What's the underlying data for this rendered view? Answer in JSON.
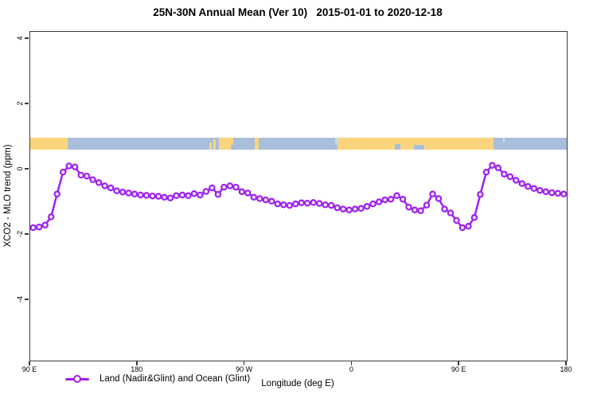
{
  "title": "25N-30N Annual Mean (Ver 10)   2015-01-01 to 2020-12-18",
  "chart_data": {
    "type": "line",
    "title": "25N-30N Annual Mean (Ver 10)   2015-01-01 to 2020-12-18",
    "xlabel": "Longitude (deg E)",
    "ylabel": "XCO2 - MLO trend (ppm)",
    "x_axis": {
      "tick_labels": [
        "90 E",
        "180",
        "90 W",
        "0",
        "90 E",
        "180"
      ],
      "tick_offsets_deg": [
        0,
        90,
        180,
        270,
        360,
        450
      ],
      "span_deg": 450,
      "note": "longitude axis starts at 90E and wraps eastward around the globe to 180"
    },
    "y_axis": {
      "tick_labels": [
        "4",
        "2",
        "0",
        "-2",
        "-4"
      ],
      "tick_values": [
        4,
        2,
        0,
        -2,
        -4
      ],
      "ylim": [
        -5.85,
        4.22
      ],
      "grid": false
    },
    "legend": {
      "position": "bottom-left",
      "entries": [
        {
          "label": "Land (Nadir&Glint) and Ocean (Glint)",
          "color": "#A020F0",
          "marker": "open-circle"
        }
      ]
    },
    "series": [
      {
        "name": "Land (Nadir&Glint) and Ocean (Glint)",
        "color": "#A020F0",
        "x_start_offset_deg": 2.5,
        "x_step_deg": 5,
        "values": [
          -1.78,
          -1.76,
          -1.7,
          -1.45,
          -0.75,
          -0.08,
          0.11,
          0.08,
          -0.17,
          -0.2,
          -0.31,
          -0.4,
          -0.5,
          -0.56,
          -0.65,
          -0.69,
          -0.72,
          -0.75,
          -0.78,
          -0.79,
          -0.81,
          -0.82,
          -0.85,
          -0.87,
          -0.8,
          -0.78,
          -0.8,
          -0.74,
          -0.78,
          -0.67,
          -0.56,
          -0.76,
          -0.54,
          -0.5,
          -0.54,
          -0.68,
          -0.72,
          -0.85,
          -0.89,
          -0.93,
          -0.97,
          -1.05,
          -1.08,
          -1.1,
          -1.05,
          -1.02,
          -1.03,
          -1.01,
          -1.04,
          -1.08,
          -1.1,
          -1.17,
          -1.21,
          -1.24,
          -1.21,
          -1.19,
          -1.13,
          -1.05,
          -0.99,
          -0.93,
          -0.91,
          -0.8,
          -0.91,
          -1.15,
          -1.24,
          -1.26,
          -1.09,
          -0.75,
          -0.89,
          -1.21,
          -1.33,
          -1.56,
          -1.78,
          -1.74,
          -1.47,
          -0.76,
          -0.08,
          0.13,
          0.05,
          -0.14,
          -0.22,
          -0.33,
          -0.43,
          -0.52,
          -0.58,
          -0.64,
          -0.68,
          -0.71,
          -0.73,
          -0.75
        ]
      }
    ],
    "surface_type_band": {
      "description": "land/ocean strip drawn across the plot between y values 0.62 and 0.98",
      "value_top": 0.98,
      "value_bottom": 0.62,
      "land_color": "#FBD57E",
      "ocean_color": "#A9BEDB",
      "ocean_light_color": "#C9D6E9",
      "segments": [
        {
          "surface": "land",
          "from_deg": 0,
          "to_deg": 31.5
        },
        {
          "surface": "ocean",
          "from_deg": 31.5,
          "to_deg": 158.5
        },
        {
          "surface": "land",
          "from_deg": 158.5,
          "to_deg": 170
        },
        {
          "surface": "ocean",
          "from_deg": 170,
          "to_deg": 188.5
        },
        {
          "surface": "land",
          "from_deg": 188.5,
          "to_deg": 191.5
        },
        {
          "surface": "ocean",
          "from_deg": 191.5,
          "to_deg": 258
        },
        {
          "surface": "land",
          "from_deg": 258,
          "to_deg": 388.5
        },
        {
          "surface": "ocean",
          "from_deg": 388.5,
          "to_deg": 450
        }
      ],
      "patches": [
        {
          "surface": "land",
          "from_deg": 150.5,
          "to_deg": 152.2,
          "align": "bottom",
          "h": 0.6
        },
        {
          "surface": "land",
          "from_deg": 153.6,
          "to_deg": 155.6,
          "align": "bottom",
          "h": 0.85
        },
        {
          "surface": "ocean",
          "from_deg": 168,
          "to_deg": 170,
          "align": "bottom",
          "h": 0.4
        },
        {
          "surface": "ocean-light",
          "from_deg": 255.5,
          "to_deg": 258.5,
          "align": "top",
          "h": 0.65
        },
        {
          "surface": "ocean",
          "from_deg": 305.5,
          "to_deg": 310.5,
          "align": "bottom",
          "h": 0.45
        },
        {
          "surface": "ocean",
          "from_deg": 322,
          "to_deg": 330.5,
          "align": "bottom",
          "h": 0.4
        },
        {
          "surface": "ocean-light",
          "from_deg": 396.5,
          "to_deg": 397.8,
          "align": "top",
          "h": 0.4
        }
      ]
    }
  }
}
